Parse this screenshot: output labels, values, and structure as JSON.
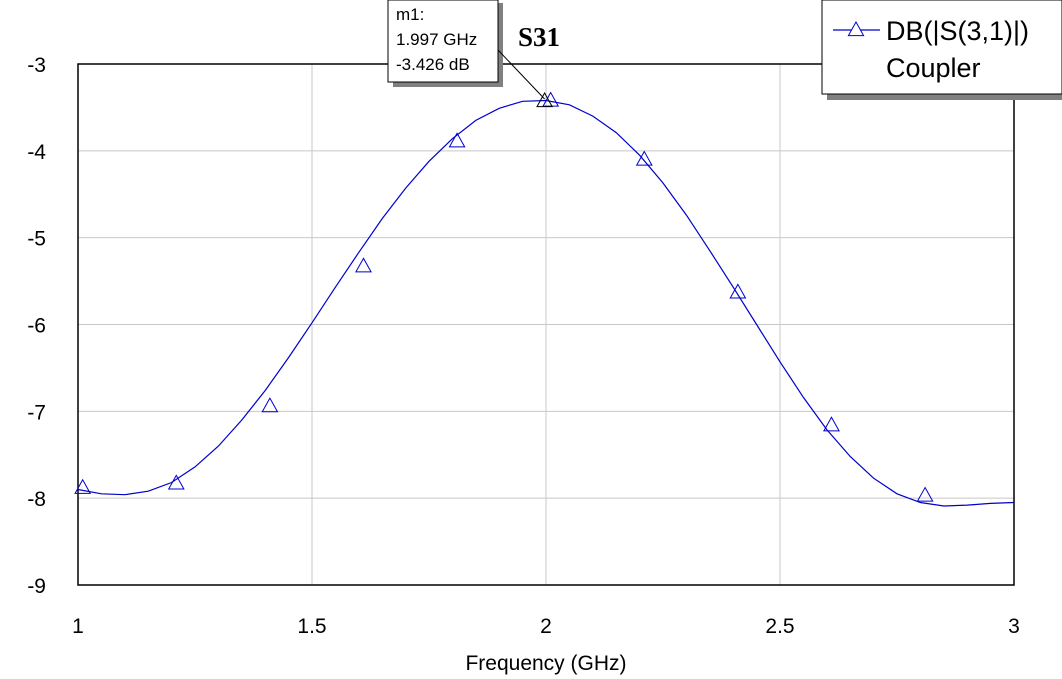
{
  "chart_data": {
    "type": "line",
    "title": "",
    "xlabel": "Frequency (GHz)",
    "ylabel": "",
    "xlim": [
      1,
      3
    ],
    "ylim": [
      -9,
      -3
    ],
    "x_ticks": [
      "1",
      "1.5",
      "2",
      "2.5",
      "3"
    ],
    "y_ticks": [
      "-3",
      "-4",
      "-5",
      "-6",
      "-7",
      "-8",
      "-9"
    ],
    "grid": true,
    "legend_position": "top-right",
    "legend": [
      "DB(|S(3,1)|)",
      "Coupler"
    ],
    "series": [
      {
        "name": "DB(|S(3,1)|)",
        "color": "#0000cc",
        "marker": "triangle",
        "x": [
          1.0,
          1.05,
          1.1,
          1.15,
          1.2,
          1.25,
          1.3,
          1.35,
          1.4,
          1.45,
          1.5,
          1.55,
          1.6,
          1.65,
          1.7,
          1.75,
          1.8,
          1.85,
          1.9,
          1.95,
          2.0,
          2.05,
          2.1,
          2.15,
          2.2,
          2.25,
          2.3,
          2.35,
          2.4,
          2.45,
          2.5,
          2.55,
          2.6,
          2.65,
          2.7,
          2.75,
          2.8,
          2.85,
          2.9,
          2.95,
          3.0
        ],
        "y": [
          -7.9,
          -7.95,
          -7.96,
          -7.92,
          -7.82,
          -7.64,
          -7.4,
          -7.1,
          -6.76,
          -6.38,
          -5.98,
          -5.57,
          -5.17,
          -4.78,
          -4.43,
          -4.12,
          -3.86,
          -3.65,
          -3.51,
          -3.43,
          -3.42,
          -3.47,
          -3.6,
          -3.79,
          -4.05,
          -4.37,
          -4.74,
          -5.15,
          -5.57,
          -6.0,
          -6.43,
          -6.84,
          -7.21,
          -7.52,
          -7.77,
          -7.95,
          -8.05,
          -8.09,
          -8.08,
          -8.06,
          -8.05
        ],
        "marker_x": [
          1.01,
          1.21,
          1.41,
          1.61,
          1.81,
          2.01,
          2.21,
          2.41,
          2.61,
          2.81
        ],
        "marker_y": [
          -7.88,
          -7.83,
          -6.94,
          -5.33,
          -3.89,
          -3.42,
          -4.1,
          -5.63,
          -7.16,
          -7.97
        ]
      }
    ],
    "marker_box": {
      "label": "m1:",
      "freq": "1.997 GHz",
      "value": "-3.426 dB",
      "x": 1.997,
      "y": -3.426
    },
    "annotation": "S31"
  }
}
